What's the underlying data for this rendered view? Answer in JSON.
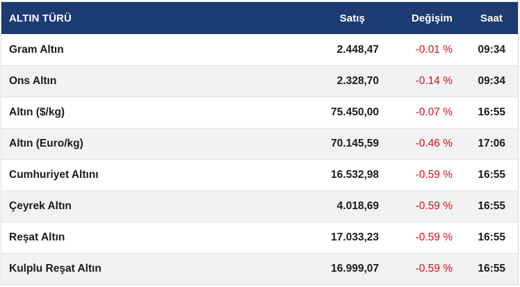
{
  "header": {
    "name": "ALTIN TÜRÜ",
    "price": "Satış",
    "change": "Değişim",
    "time": "Saat"
  },
  "rows": [
    {
      "name": "Gram Altın",
      "price": "2.448,47",
      "change": "-0.01 %",
      "time": "09:34"
    },
    {
      "name": "Ons Altın",
      "price": "2.328,70",
      "change": "-0.14 %",
      "time": "09:34"
    },
    {
      "name": "Altın ($/kg)",
      "price": "75.450,00",
      "change": "-0.07 %",
      "time": "16:55"
    },
    {
      "name": "Altın (Euro/kg)",
      "price": "70.145,59",
      "change": "-0.46 %",
      "time": "17:06"
    },
    {
      "name": "Cumhuriyet Altını",
      "price": "16.532,98",
      "change": "-0.59 %",
      "time": "16:55"
    },
    {
      "name": "Çeyrek Altın",
      "price": "4.018,69",
      "change": "-0.59 %",
      "time": "16:55"
    },
    {
      "name": "Reşat Altın",
      "price": "17.033,23",
      "change": "-0.59 %",
      "time": "16:55"
    },
    {
      "name": "Kulplu Reşat Altın",
      "price": "16.999,07",
      "change": "-0.59 %",
      "time": "16:55"
    }
  ],
  "colors": {
    "header_bg": "#1d3b73",
    "negative": "#d0101b",
    "alt_row": "#f2f2f2"
  }
}
